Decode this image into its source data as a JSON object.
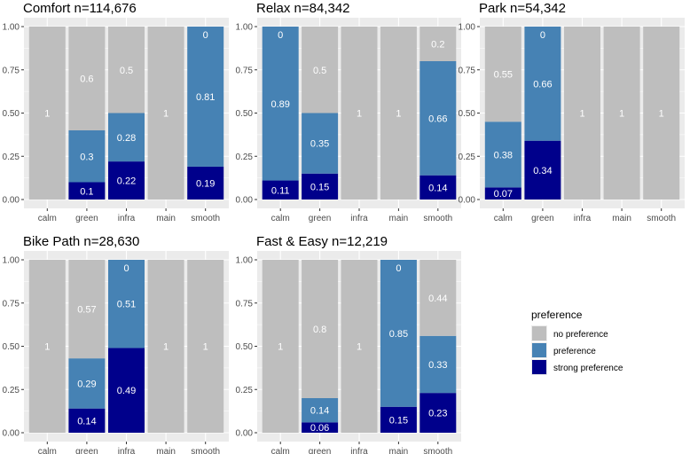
{
  "chart_data": {
    "type": "bar",
    "stacked": true,
    "categories": [
      "calm",
      "green",
      "infra",
      "main",
      "smooth"
    ],
    "ylim": [
      0,
      1
    ],
    "yticks": [
      "0.00",
      "0.25",
      "0.50",
      "0.75",
      "1.00"
    ],
    "series_names": [
      "no preference",
      "preference",
      "strong preference"
    ],
    "colors": {
      "no preference": "#bebebe",
      "preference": "#4682b4",
      "strong preference": "#00008b",
      "panel_bg": "#ebebeb",
      "grid": "#ffffff"
    },
    "legend": {
      "title": "preference",
      "position": "right",
      "items": [
        "no preference",
        "preference",
        "strong preference"
      ]
    },
    "panels": [
      {
        "title": "Comfort n=114,676",
        "strong": [
          0,
          0.1,
          0.22,
          0,
          0.19
        ],
        "pref": [
          0,
          0.3,
          0.28,
          0,
          0.81
        ],
        "none": [
          1,
          0.6,
          0.5,
          1,
          0
        ],
        "labels": {
          "strong": [
            "",
            "0.1",
            "0.22",
            "",
            "0.19"
          ],
          "pref": [
            "",
            "0.3",
            "0.28",
            "",
            "0.81"
          ],
          "none": [
            "1",
            "0.6",
            "0.5",
            "1",
            "0"
          ]
        }
      },
      {
        "title": "Relax n=84,342",
        "strong": [
          0.11,
          0.15,
          0,
          0,
          0.14
        ],
        "pref": [
          0.89,
          0.35,
          0,
          0,
          0.66
        ],
        "none": [
          0,
          0.5,
          1,
          1,
          0.2
        ],
        "labels": {
          "strong": [
            "0.11",
            "0.15",
            "",
            "",
            "0.14"
          ],
          "pref": [
            "0.89",
            "0.35",
            "",
            "",
            "0.66"
          ],
          "none": [
            "0",
            "0.5",
            "1",
            "1",
            "0.2"
          ]
        }
      },
      {
        "title": "Park n=54,342",
        "strong": [
          0.07,
          0.34,
          0,
          0,
          0
        ],
        "pref": [
          0.38,
          0.66,
          0,
          0,
          0
        ],
        "none": [
          0.55,
          0,
          1,
          1,
          1
        ],
        "labels": {
          "strong": [
            "0.07",
            "0.34",
            "",
            "",
            ""
          ],
          "pref": [
            "0.38",
            "0.66",
            "",
            "",
            ""
          ],
          "none": [
            "0.55",
            "0",
            "1",
            "1",
            "1"
          ]
        }
      },
      {
        "title": "Bike Path n=28,630",
        "strong": [
          0,
          0.14,
          0.49,
          0,
          0
        ],
        "pref": [
          0,
          0.29,
          0.51,
          0,
          0
        ],
        "none": [
          1,
          0.57,
          0,
          1,
          1
        ],
        "labels": {
          "strong": [
            "",
            "0.14",
            "0.49",
            "",
            ""
          ],
          "pref": [
            "",
            "0.29",
            "0.51",
            "",
            ""
          ],
          "none": [
            "1",
            "0.57",
            "0",
            "1",
            "1"
          ]
        }
      },
      {
        "title": "Fast & Easy n=12,219",
        "strong": [
          0,
          0.06,
          0,
          0.15,
          0.23
        ],
        "pref": [
          0,
          0.14,
          0,
          0.85,
          0.33
        ],
        "none": [
          1,
          0.8,
          1,
          0,
          0.44
        ],
        "labels": {
          "strong": [
            "",
            "0.06",
            "",
            "0.15",
            "0.23"
          ],
          "pref": [
            "",
            "0.14",
            "",
            "0.85",
            "0.33"
          ],
          "none": [
            "1",
            "0.8",
            "1",
            "0",
            "0.44"
          ]
        }
      }
    ]
  }
}
